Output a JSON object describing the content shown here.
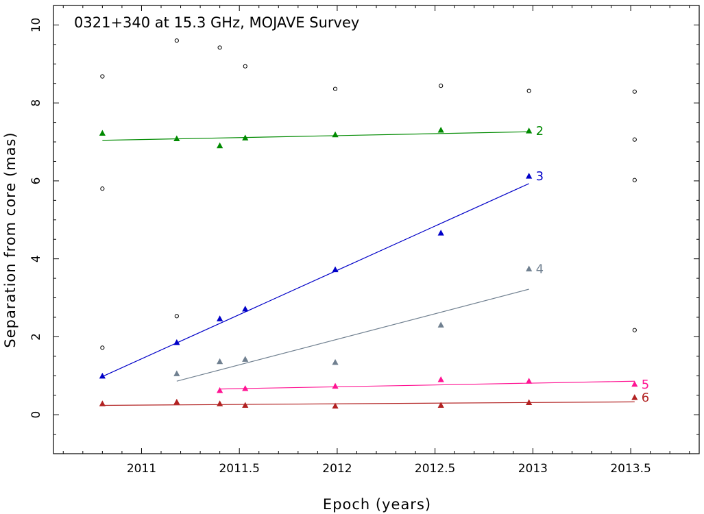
{
  "chart_data": {
    "type": "scatter",
    "title": "0321+340 at 15.3 GHz, MOJAVE Survey",
    "xlabel": "Epoch (years)",
    "ylabel": "Separation from core (mas)",
    "xlim": [
      2010.55,
      2013.85
    ],
    "ylim": [
      -1.0,
      10.5
    ],
    "x_ticks": [
      "2011",
      "2011.5",
      "2012",
      "2012.5",
      "2013",
      "2013.5"
    ],
    "y_ticks": [
      "0",
      "2",
      "4",
      "6",
      "8",
      "10"
    ],
    "grid": false,
    "series": [
      {
        "name": "",
        "marker": "open-circle",
        "color": "#000000",
        "points": [
          [
            2010.8,
            8.68
          ],
          [
            2010.8,
            5.8
          ],
          [
            2010.8,
            1.72
          ],
          [
            2011.18,
            9.6
          ],
          [
            2011.18,
            2.53
          ],
          [
            2011.4,
            9.42
          ],
          [
            2011.53,
            8.94
          ],
          [
            2011.99,
            8.36
          ],
          [
            2012.53,
            8.44
          ],
          [
            2012.98,
            8.31
          ],
          [
            2013.52,
            8.29
          ],
          [
            2013.52,
            7.06
          ],
          [
            2013.52,
            6.02
          ],
          [
            2013.52,
            2.17
          ]
        ]
      },
      {
        "name": "2",
        "marker": "triangle",
        "color": "#008a00",
        "points": [
          [
            2010.8,
            7.22
          ],
          [
            2011.18,
            7.08
          ],
          [
            2011.4,
            6.9
          ],
          [
            2011.53,
            7.1
          ],
          [
            2011.99,
            7.18
          ],
          [
            2012.53,
            7.3
          ],
          [
            2012.98,
            7.28
          ]
        ],
        "fit": [
          [
            2010.8,
            7.04
          ],
          [
            2012.98,
            7.26
          ]
        ]
      },
      {
        "name": "3",
        "marker": "triangle",
        "color": "#0000c8",
        "points": [
          [
            2010.8,
            0.99
          ],
          [
            2011.18,
            1.85
          ],
          [
            2011.4,
            2.46
          ],
          [
            2011.53,
            2.71
          ],
          [
            2011.99,
            3.72
          ],
          [
            2012.53,
            4.66
          ],
          [
            2012.98,
            6.12
          ]
        ],
        "fit": [
          [
            2010.8,
            0.98
          ],
          [
            2012.98,
            5.93
          ]
        ]
      },
      {
        "name": "4",
        "marker": "triangle",
        "color": "#708090",
        "points": [
          [
            2011.18,
            1.05
          ],
          [
            2011.4,
            1.36
          ],
          [
            2011.53,
            1.42
          ],
          [
            2011.99,
            1.34
          ],
          [
            2012.53,
            2.3
          ],
          [
            2012.98,
            3.74
          ]
        ],
        "fit": [
          [
            2011.18,
            0.86
          ],
          [
            2012.98,
            3.22
          ]
        ]
      },
      {
        "name": "5",
        "marker": "triangle",
        "color": "#ff1493",
        "points": [
          [
            2011.4,
            0.62
          ],
          [
            2011.53,
            0.67
          ],
          [
            2011.99,
            0.73
          ],
          [
            2012.53,
            0.9
          ],
          [
            2012.98,
            0.86
          ],
          [
            2013.52,
            0.78
          ]
        ],
        "fit": [
          [
            2011.4,
            0.66
          ],
          [
            2013.52,
            0.86
          ]
        ]
      },
      {
        "name": "6",
        "marker": "triangle",
        "color": "#b22222",
        "points": [
          [
            2010.8,
            0.28
          ],
          [
            2011.18,
            0.32
          ],
          [
            2011.4,
            0.28
          ],
          [
            2011.53,
            0.24
          ],
          [
            2011.99,
            0.22
          ],
          [
            2012.53,
            0.24
          ],
          [
            2012.98,
            0.31
          ],
          [
            2013.52,
            0.44
          ]
        ],
        "fit": [
          [
            2010.8,
            0.24
          ],
          [
            2013.52,
            0.33
          ]
        ]
      }
    ]
  }
}
